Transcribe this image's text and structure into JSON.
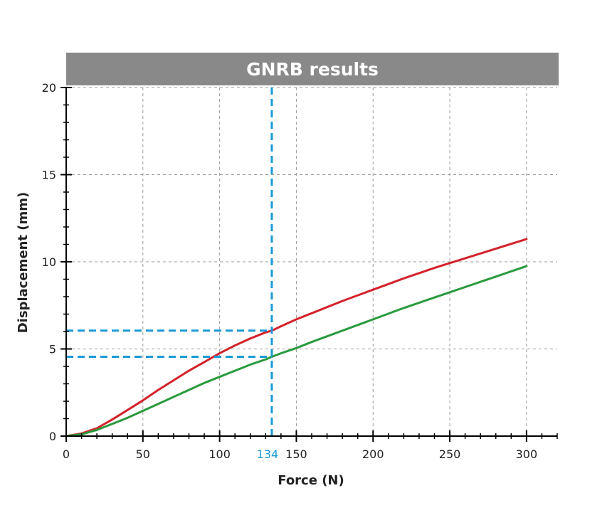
{
  "chart_data": {
    "type": "line",
    "title": "GNRB results",
    "xlabel": "Force (N)",
    "ylabel": "Displacement (mm)",
    "xlim": [
      0,
      320
    ],
    "ylim": [
      0,
      20
    ],
    "x_ticks": [
      0,
      50,
      100,
      150,
      200,
      250,
      300
    ],
    "y_ticks": [
      0,
      5,
      10,
      15,
      20
    ],
    "grid": true,
    "series": [
      {
        "color": "#d3222a",
        "x": [
          0,
          10,
          20,
          30,
          40,
          50,
          60,
          70,
          80,
          90,
          100,
          110,
          120,
          130,
          134,
          140,
          150,
          160,
          180,
          200,
          220,
          240,
          260,
          280,
          300
        ],
        "y": [
          0,
          0.15,
          0.45,
          0.95,
          1.5,
          2.05,
          2.65,
          3.2,
          3.75,
          4.25,
          4.75,
          5.2,
          5.6,
          5.95,
          6.05,
          6.3,
          6.7,
          7.05,
          7.75,
          8.4,
          9.05,
          9.65,
          10.2,
          10.75,
          11.3
        ]
      },
      {
        "color": "#2a9a3e",
        "x": [
          0,
          10,
          20,
          30,
          40,
          50,
          60,
          70,
          80,
          90,
          100,
          110,
          120,
          130,
          134,
          140,
          150,
          160,
          180,
          200,
          220,
          240,
          260,
          280,
          300
        ],
        "y": [
          0,
          0.1,
          0.35,
          0.7,
          1.05,
          1.45,
          1.85,
          2.25,
          2.65,
          3.05,
          3.4,
          3.75,
          4.1,
          4.4,
          4.55,
          4.75,
          5.05,
          5.4,
          6.05,
          6.7,
          7.35,
          7.95,
          8.55,
          9.15,
          9.75
        ]
      }
    ],
    "annotations": {
      "color": "#1a9ad6",
      "x_marker": 134,
      "x_marker_label": "134",
      "y_levels": [
        6.05,
        4.55
      ]
    }
  }
}
